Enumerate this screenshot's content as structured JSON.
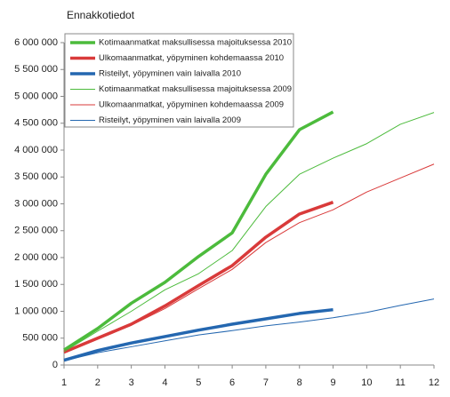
{
  "chart_data": {
    "type": "line",
    "title": "Ennakkotiedot",
    "x": [
      1,
      2,
      3,
      4,
      5,
      6,
      7,
      8,
      9,
      10,
      11,
      12
    ],
    "xlim": [
      1,
      12
    ],
    "xticks": [
      1,
      2,
      3,
      4,
      5,
      6,
      7,
      8,
      9,
      10,
      11,
      12
    ],
    "ylim": [
      0,
      6000000
    ],
    "yticks": [
      0,
      {
        "value": 500000,
        "label": "500 000"
      },
      {
        "value": 1000000,
        "label": "1 000 000"
      },
      {
        "value": 1500000,
        "label": "1 500 000"
      },
      {
        "value": 2000000,
        "label": "2 000 000"
      },
      {
        "value": 2500000,
        "label": "2 500 000"
      },
      {
        "value": 3000000,
        "label": "3 000 000"
      },
      {
        "value": 3500000,
        "label": "3 500 000"
      },
      {
        "value": 4000000,
        "label": "4 000 000"
      },
      {
        "value": 4500000,
        "label": "4 500 000"
      },
      {
        "value": 5000000,
        "label": "5 000 000"
      },
      {
        "value": 5500000,
        "label": "5 500 000"
      },
      {
        "value": 6000000,
        "label": "6 000 000"
      }
    ],
    "grid": false,
    "legend": "upper left",
    "series": [
      {
        "name": "Kotimaanmatkat maksullisessa majoituksessa 2010",
        "color": "#4cbb3c",
        "line_width": 3.5,
        "values": [
          280000,
          680000,
          1150000,
          1540000,
          2020000,
          2460000,
          3550000,
          4380000,
          4710000,
          null,
          null,
          null
        ]
      },
      {
        "name": "Ulkomaanmatkat, yöpyminen kohdemaassa 2010",
        "color": "#d93a3a",
        "line_width": 3.5,
        "values": [
          240000,
          500000,
          760000,
          1100000,
          1480000,
          1850000,
          2380000,
          2810000,
          3030000,
          null,
          null,
          null
        ]
      },
      {
        "name": "Risteilyt, yöpyminen vain laivalla 2010",
        "color": "#2467b0",
        "line_width": 3.5,
        "values": [
          90000,
          270000,
          410000,
          530000,
          650000,
          760000,
          860000,
          960000,
          1030000,
          null,
          null,
          null
        ]
      },
      {
        "name": "Kotimaanmatkat maksullisessa majoituksessa 2009",
        "color": "#4cbb3c",
        "line_width": 1,
        "values": [
          250000,
          630000,
          1000000,
          1400000,
          1700000,
          2130000,
          2950000,
          3550000,
          3850000,
          4120000,
          4480000,
          4700000
        ]
      },
      {
        "name": "Ulkomaanmatkat, yöpyminen kohdemaassa 2009",
        "color": "#d93a3a",
        "line_width": 1,
        "values": [
          230000,
          480000,
          740000,
          1050000,
          1420000,
          1780000,
          2280000,
          2650000,
          2890000,
          3220000,
          3480000,
          3740000
        ]
      },
      {
        "name": "Risteilyt, yöpyminen vain laivalla 2009",
        "color": "#2467b0",
        "line_width": 1,
        "values": [
          80000,
          230000,
          340000,
          450000,
          560000,
          640000,
          730000,
          800000,
          880000,
          980000,
          1110000,
          1230000
        ]
      }
    ]
  }
}
